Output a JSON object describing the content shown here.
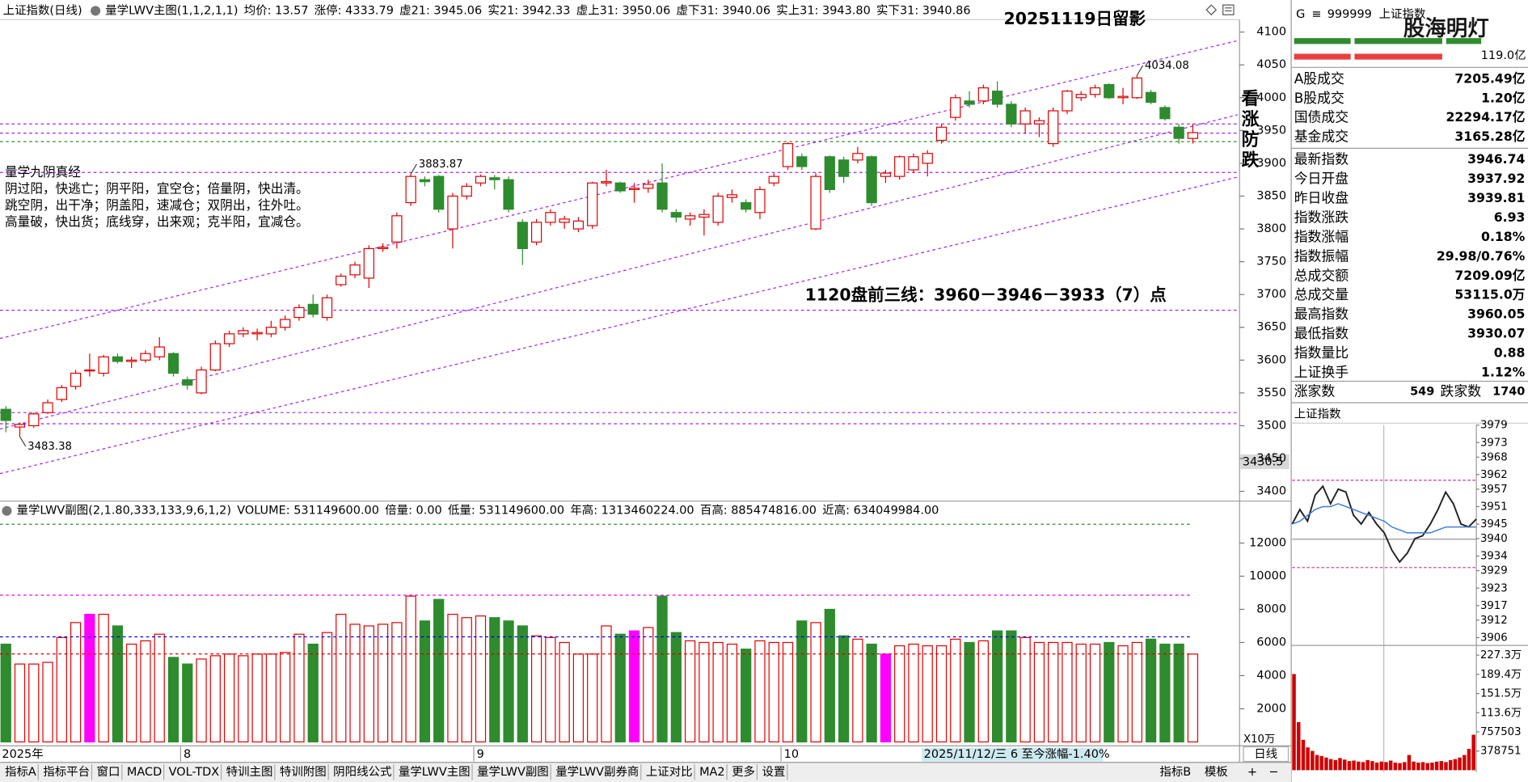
{
  "toolbar": {
    "title": "上证指数(日线)",
    "indicator": "量学LWV主图(1,1,2,1,1)",
    "items": [
      {
        "text": "均价: 13.57",
        "color": "#000000"
      },
      {
        "text": "涨停: 4333.79",
        "color": "#e00000"
      },
      {
        "text": "虚21: 3945.06",
        "color": "#0000cc"
      },
      {
        "text": "实21: 3942.33",
        "color": "#e00000"
      },
      {
        "text": "虚上31: 3950.06",
        "color": "#ee00ee"
      },
      {
        "text": "虚下31: 3940.06",
        "color": "#0000cc"
      },
      {
        "text": "实上31: 3943.80",
        "color": "#e00000"
      },
      {
        "text": "实下31: 3940.86",
        "color": "#ee00ee"
      }
    ]
  },
  "annotations": {
    "date_note": "20251119日留影",
    "vertical_note": [
      "看",
      "涨",
      "防",
      "跌"
    ],
    "forecast": "1120盘前三线：3960－3946－3933（7）点",
    "poem_title": "量学九阴真经",
    "poem": [
      "阴过阳，快逃亡；阴平阳，宜空仓；倍量阴，快出清。",
      "跳空阴，出干净；阴盖阳，速减仓；双阴出，往外吐。",
      "高量破，快出货；底线穿，出来观；克半阳，宜减仓。"
    ],
    "color": "#8a00e6"
  },
  "watermark": "股海明灯",
  "chart_data": [
    {
      "type": "candlestick",
      "categories": [
        "2025年",
        null,
        null,
        null,
        null,
        null,
        null,
        null,
        null,
        null,
        null,
        null,
        null,
        "8",
        null,
        null,
        null,
        null,
        null,
        null,
        null,
        null,
        null,
        null,
        null,
        null,
        null,
        null,
        null,
        null,
        null,
        null,
        null,
        null,
        "9",
        null,
        null,
        null,
        null,
        null,
        null,
        null,
        null,
        null,
        null,
        null,
        null,
        null,
        null,
        null,
        null,
        null,
        null,
        null,
        null,
        null,
        "10",
        null,
        null,
        null,
        null,
        null,
        null,
        null,
        null,
        null,
        null,
        null,
        null,
        null,
        null,
        null,
        null,
        null,
        null,
        null,
        null,
        null,
        null,
        null,
        null,
        null,
        null,
        null,
        null,
        null
      ],
      "open": [
        3525,
        3498,
        3500,
        3520,
        3540,
        3560,
        3585,
        3580,
        3605,
        3598,
        3600,
        3605,
        3610,
        3570,
        3550,
        3585,
        3625,
        3640,
        3640,
        3640,
        3650,
        3665,
        3685,
        3665,
        3715,
        3730,
        3725,
        3770,
        3780,
        3840,
        3875,
        3880,
        3800,
        3850,
        3870,
        3878,
        3875,
        3810,
        3780,
        3810,
        3810,
        3800,
        3805,
        3870,
        3870,
        3860,
        3862,
        3870,
        3825,
        3815,
        3818,
        3810,
        3848,
        3840,
        3825,
        3870,
        3895,
        3910,
        3800,
        3910,
        3905,
        3905,
        3910,
        3880,
        3880,
        3890,
        3900,
        3935,
        3970,
        3995,
        3995,
        4010,
        3990,
        3960,
        3960,
        3930,
        3980,
        4000,
        4005,
        4020,
        4000,
        4000,
        4008,
        3985,
        3955,
        3937.92
      ],
      "high": [
        3530,
        3505,
        3520,
        3540,
        3562,
        3585,
        3610,
        3608,
        3610,
        3605,
        3615,
        3635,
        3612,
        3575,
        3590,
        3630,
        3645,
        3650,
        3648,
        3660,
        3668,
        3685,
        3700,
        3700,
        3732,
        3750,
        3775,
        3778,
        3825,
        3883.87,
        3880,
        3882,
        3855,
        3870,
        3883,
        3882,
        3880,
        3815,
        3815,
        3830,
        3820,
        3818,
        3872,
        3890,
        3872,
        3870,
        3875,
        3900,
        3830,
        3825,
        3830,
        3855,
        3860,
        3845,
        3865,
        3885,
        3932,
        3915,
        3885,
        3912,
        3910,
        3925,
        3912,
        3890,
        3912,
        3915,
        3920,
        3960,
        4005,
        4010,
        4020,
        4025,
        3995,
        3985,
        3970,
        3985,
        4012,
        4010,
        4020,
        4022,
        4015,
        4034.08,
        4012,
        3988,
        3960,
        3960.05
      ],
      "low": [
        3490,
        3483.38,
        3497,
        3518,
        3536,
        3555,
        3575,
        3575,
        3595,
        3588,
        3596,
        3600,
        3575,
        3555,
        3548,
        3583,
        3620,
        3635,
        3630,
        3635,
        3645,
        3660,
        3665,
        3660,
        3712,
        3725,
        3710,
        3765,
        3770,
        3835,
        3865,
        3825,
        3770,
        3845,
        3865,
        3860,
        3825,
        3745,
        3775,
        3805,
        3800,
        3795,
        3800,
        3865,
        3855,
        3840,
        3855,
        3825,
        3810,
        3805,
        3790,
        3805,
        3840,
        3825,
        3815,
        3865,
        3890,
        3890,
        3798,
        3855,
        3870,
        3900,
        3835,
        3870,
        3875,
        3885,
        3880,
        3930,
        3965,
        3985,
        3990,
        3985,
        3955,
        3945,
        3940,
        3925,
        3975,
        3995,
        4000,
        3998,
        3990,
        3998,
        3990,
        3965,
        3930,
        3930.07
      ],
      "close": [
        3508,
        3502,
        3518,
        3535,
        3558,
        3580,
        3585,
        3605,
        3598,
        3600,
        3610,
        3620,
        3580,
        3562,
        3585,
        3625,
        3640,
        3645,
        3642,
        3650,
        3662,
        3680,
        3670,
        3695,
        3728,
        3745,
        3770,
        3772,
        3820,
        3880,
        3872,
        3830,
        3850,
        3865,
        3880,
        3875,
        3830,
        3770,
        3810,
        3825,
        3815,
        3812,
        3870,
        3872,
        3858,
        3862,
        3868,
        3830,
        3818,
        3820,
        3822,
        3850,
        3852,
        3830,
        3860,
        3880,
        3930,
        3895,
        3880,
        3860,
        3880,
        3915,
        3840,
        3885,
        3910,
        3910,
        3915,
        3955,
        4000,
        3990,
        4015,
        3990,
        3960,
        3980,
        3965,
        3980,
        4010,
        4005,
        4015,
        4000,
        4002,
        4030,
        3993,
        3968,
        3938,
        3946.74
      ],
      "up_color": "#e00000",
      "down_color": "#2e8b2e",
      "marked": [
        {
          "index": 1,
          "field": "low"
        },
        {
          "index": 29,
          "field": "high"
        },
        {
          "index": 81,
          "field": "high"
        }
      ],
      "ref_lines": [
        {
          "value": 3960,
          "color": "#a020f0"
        },
        {
          "value": 3946,
          "color": "#a020f0"
        },
        {
          "value": 3933,
          "color": "#2e8b2e"
        },
        {
          "value": 3886,
          "color": "#a020f0"
        },
        {
          "value": 3676,
          "color": "#a020f0"
        },
        {
          "value": 3520,
          "color": "#a020f0"
        },
        {
          "value": 3503,
          "color": "#a020f0"
        }
      ],
      "trendlines": [
        {
          "from": 3633,
          "to": 4087
        },
        {
          "from": 3495,
          "to": 3974
        },
        {
          "from": 3427,
          "to": 3879
        }
      ],
      "trend_color": "#a020f0",
      "ylim": [
        3388,
        4119
      ],
      "yticks": [
        3400,
        3450,
        3500,
        3550,
        3600,
        3650,
        3700,
        3750,
        3800,
        3850,
        3900,
        3950,
        4000,
        4050,
        4100
      ],
      "axis_cursor": "3430.5"
    },
    {
      "type": "bar",
      "title": "量学LWV副图(2,1.80,333,133,9,6,1,2)",
      "legend": [
        {
          "text": "VOLUME: 531149600.00",
          "color": "#000000"
        },
        {
          "text": "倍量: 0.00",
          "color": "#e00000"
        },
        {
          "text": "低量: 531149600.00",
          "color": "#e00000"
        },
        {
          "text": "年高: 1313460224.00",
          "color": "#2e8b2e"
        },
        {
          "text": "百高: 885474816.00",
          "color": "#ee00ee"
        },
        {
          "text": "近高: 634049984.00",
          "color": "#0000ee"
        }
      ],
      "values": [
        5900,
        4700,
        4700,
        4800,
        6300,
        7200,
        7700,
        7700,
        7000,
        5900,
        6100,
        6500,
        5100,
        4700,
        5000,
        5200,
        5300,
        5200,
        5300,
        5300,
        5400,
        6500,
        5900,
        6600,
        7700,
        7100,
        7000,
        7100,
        7200,
        8800,
        7300,
        8600,
        7700,
        7500,
        7600,
        7500,
        7300,
        7000,
        6400,
        6300,
        6000,
        5300,
        5300,
        7000,
        6500,
        6700,
        6900,
        8800,
        6600,
        6100,
        6000,
        6000,
        5900,
        5600,
        6100,
        6000,
        6000,
        7300,
        7200,
        8000,
        6400,
        6200,
        5900,
        5300,
        5800,
        5900,
        5800,
        5800,
        6200,
        6000,
        6100,
        6700,
        6700,
        6300,
        6000,
        6000,
        6000,
        5900,
        5900,
        6000,
        5800,
        6000,
        6200,
        5900,
        5900,
        5300
      ],
      "highlight": {
        "color": "#ff00ff",
        "bars": [
          6,
          45,
          63
        ]
      },
      "ref_lines": [
        {
          "value": 13134.6,
          "color": "#2e8b2e"
        },
        {
          "value": 8854.7,
          "color": "#ee00ee"
        },
        {
          "value": 6340.5,
          "color": "#0000ee"
        },
        {
          "value": 5311.5,
          "color": "#e00000"
        }
      ],
      "ylim": [
        0,
        13470
      ],
      "yticks": [
        2000,
        4000,
        6000,
        8000,
        10000,
        12000
      ],
      "unit": "X10万"
    },
    {
      "type": "line",
      "title": "上证指数",
      "series": [
        {
          "name": "price",
          "color": "#222222",
          "values": [
            3945,
            3950,
            3946,
            3955,
            3958,
            3952,
            3957,
            3956,
            3948,
            3945,
            3949,
            3945,
            3942,
            3936,
            3932,
            3935,
            3940,
            3941,
            3945,
            3950,
            3956,
            3952,
            3945,
            3944,
            3946.74
          ]
        },
        {
          "name": "average",
          "color": "#3a7bd5",
          "values": [
            3945,
            3946,
            3948,
            3950,
            3951,
            3951,
            3952,
            3951,
            3950,
            3949,
            3948,
            3947,
            3946,
            3944,
            3943,
            3942,
            3942,
            3942,
            3942,
            3943,
            3944,
            3944,
            3944,
            3944,
            3944
          ]
        }
      ],
      "baseline": 3939.81,
      "up_color": "#e00000",
      "down_color": "#2e8b2e",
      "ref_lines": [
        3960.05,
        3930.07
      ],
      "ylim": [
        3906,
        3979
      ],
      "yticks": [
        3979,
        3973,
        3968,
        3962,
        3957,
        3951,
        3945,
        3940,
        3934,
        3929,
        3923,
        3917,
        3912,
        3906
      ]
    },
    {
      "type": "bar",
      "values": [
        1900000,
        950000,
        600000,
        450000,
        380000,
        300000,
        280000,
        250000,
        220000,
        200000,
        240000,
        210000,
        180000,
        190000,
        170000,
        160000,
        200000,
        180000,
        150000,
        170000,
        160000,
        190000,
        150000,
        140000,
        160000,
        300000,
        170000,
        150000,
        160000,
        140000,
        150000,
        170000,
        180000,
        160000,
        200000,
        220000,
        250000,
        300000,
        420000,
        700000
      ],
      "color": "#d00000",
      "ylim": [
        0,
        2273000
      ],
      "yticks": [
        {
          "value": 2273000,
          "label": "227.3万"
        },
        {
          "value": 1894000,
          "label": "189.4万"
        },
        {
          "value": 1515000,
          "label": "151.5万"
        },
        {
          "value": 1136000,
          "label": "113.6万"
        },
        757503,
        378751
      ]
    }
  ],
  "side_panel": {
    "badge": "G",
    "code": "999999",
    "name": "上证指数",
    "flow": "119.0亿",
    "rows": [
      {
        "label": "A股成交",
        "value": "7205.49亿",
        "color": "#000000"
      },
      {
        "label": "B股成交",
        "value": "1.20亿",
        "color": "#000000"
      },
      {
        "label": "国债成交",
        "value": "22294.17亿",
        "color": "#000000"
      },
      {
        "label": "基金成交",
        "value": "3165.28亿",
        "color": "#000000"
      },
      {
        "label": "最新指数",
        "value": "3946.74",
        "color": "#e00000"
      },
      {
        "label": "今日开盘",
        "value": "3937.92",
        "color": "#008000"
      },
      {
        "label": "昨日收盘",
        "value": "3939.81",
        "color": "#000000"
      },
      {
        "label": "指数涨跌",
        "value": "6.93",
        "color": "#e00000"
      },
      {
        "label": "指数涨幅",
        "value": "0.18%",
        "color": "#e00000"
      },
      {
        "label": "指数振幅",
        "value": "29.98/0.76%",
        "color": "#000000"
      },
      {
        "label": "总成交额",
        "value": "7209.09亿",
        "color": "#000000"
      },
      {
        "label": "总成交量",
        "value": "53115.0万",
        "color": "#000000"
      },
      {
        "label": "最高指数",
        "value": "3960.05",
        "color": "#e00000"
      },
      {
        "label": "最低指数",
        "value": "3930.07",
        "color": "#008000"
      },
      {
        "label": "指数量比",
        "value": "0.88",
        "color": "#008000"
      },
      {
        "label": "上证换手",
        "value": "1.12%",
        "color": "#000000"
      }
    ],
    "breadth": {
      "up_label": "涨家数",
      "up": "549",
      "down_label": "跌家数",
      "down": "1740"
    }
  },
  "status": "2025/11/12/三 6 至今涨幅-1.40%",
  "period_button": "日线",
  "tabs": [
    {
      "label": "指标A"
    },
    {
      "label": "指标平台"
    },
    {
      "label": "窗口"
    },
    {
      "label": "MACD"
    },
    {
      "label": "VOL-TDX"
    },
    {
      "label": "特训主图"
    },
    {
      "label": "特训附图"
    },
    {
      "label": "阴阳线公式"
    },
    {
      "label": "量学LWV主图"
    },
    {
      "label": "量学LWV副图",
      "active": true
    },
    {
      "label": "量学LWV副券商"
    },
    {
      "label": "上证对比"
    },
    {
      "label": "MA2"
    },
    {
      "label": "更多"
    },
    {
      "label": "设置"
    }
  ],
  "right_tabs": [
    "指标B",
    "模板",
    "+",
    "−"
  ]
}
